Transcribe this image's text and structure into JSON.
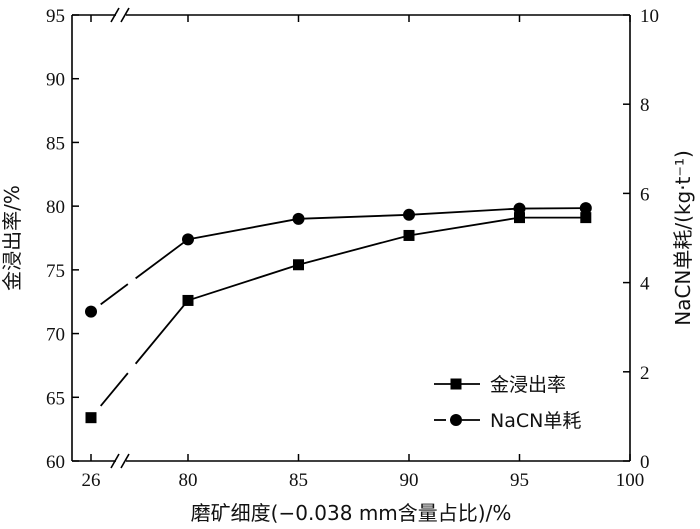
{
  "chart_data": {
    "type": "line",
    "xlabel": "磨矿细度(−0.038 mm含量占比)/%",
    "ylabel_left": "金浸出率/%",
    "ylabel_right": "NaCN单耗/(kg·t⁻¹)",
    "x_ticks": [
      "26",
      "80",
      "85",
      "90",
      "95",
      "100"
    ],
    "x_axis_break": "between 26 and 80",
    "y_left_ticks": [
      "60",
      "65",
      "70",
      "75",
      "80",
      "85",
      "90",
      "95"
    ],
    "y_left_range": [
      60,
      95
    ],
    "y_left_axis_break": "top of left axis",
    "y_right_ticks": [
      "0",
      "2",
      "4",
      "6",
      "8",
      "10"
    ],
    "y_right_range": [
      0,
      10
    ],
    "legend_position": "bottom-right",
    "series": [
      {
        "name": "金浸出率",
        "marker": "square",
        "axis": "left",
        "x": [
          26,
          80,
          85,
          90,
          95,
          98
        ],
        "values": [
          63.4,
          72.6,
          75.4,
          77.7,
          79.1,
          79.1
        ]
      },
      {
        "name": "NaCN单耗",
        "marker": "circle",
        "axis": "right",
        "x": [
          26,
          80,
          85,
          90,
          95,
          98
        ],
        "values": [
          3.35,
          4.97,
          5.43,
          5.52,
          5.66,
          5.67
        ]
      }
    ]
  }
}
